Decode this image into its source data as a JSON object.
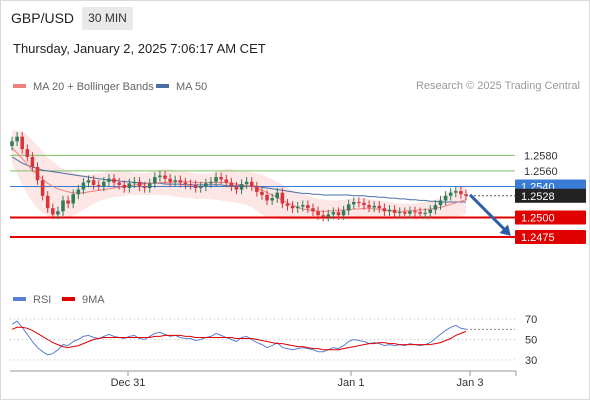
{
  "header": {
    "symbol": "GBP/USD",
    "timeframe": "30 MIN",
    "datetime": "Thursday, January 2, 2025 7:06:17 AM CET"
  },
  "attribution": "Research © 2025 Trading Central",
  "colors": {
    "up_candle": "#2e7d5b",
    "down_candle": "#d9343a",
    "ma20": "#f08080",
    "bollinger_fill": "#fde2e2",
    "ma50": "#4a6fa5",
    "resistance": "#7fc060",
    "pivot": "#3a7bd5",
    "support": "#e00000",
    "last_price_bg": "#222222",
    "forecast_arrow": "#2e5ea8",
    "rsi": "#5b7fd6",
    "rsi_ma": "#e00000"
  },
  "legend": [
    {
      "label": "MA 20 + Bollinger Bands",
      "color": "#f08080"
    },
    {
      "label": "MA 50",
      "color": "#4a6fa5"
    }
  ],
  "rsi_legend": [
    {
      "label": "RSI",
      "color": "#5b7fd6"
    },
    {
      "label": "9MA",
      "color": "#e00000"
    }
  ],
  "chart_data": [
    {
      "type": "candlestick",
      "title": "GBP/USD 30 MIN",
      "ylim": [
        1.2448,
        1.2628
      ],
      "x_ticks": [
        "Dec 31",
        "Jan 1",
        "Jan 3"
      ],
      "levels": [
        {
          "value": 1.258,
          "label": "1.2580",
          "kind": "resistance"
        },
        {
          "value": 1.256,
          "label": "1.2560",
          "kind": "resistance"
        },
        {
          "value": 1.254,
          "label": "1.2540",
          "kind": "pivot"
        },
        {
          "value": 1.25,
          "label": "1.2500",
          "kind": "support"
        },
        {
          "value": 1.2475,
          "label": "1.2475",
          "kind": "support"
        }
      ],
      "last_price": {
        "value": 1.2528,
        "label": "1.2528"
      },
      "close_series": [
        1.2598,
        1.2604,
        1.2588,
        1.2578,
        1.2565,
        1.2548,
        1.2528,
        1.2512,
        1.2504,
        1.2508,
        1.2522,
        1.2518,
        1.253,
        1.2536,
        1.2545,
        1.2548,
        1.2542,
        1.254,
        1.2546,
        1.255,
        1.2545,
        1.2542,
        1.2538,
        1.2544,
        1.2546,
        1.254,
        1.2538,
        1.2544,
        1.2552,
        1.2554,
        1.255,
        1.2546,
        1.2548,
        1.2545,
        1.2543,
        1.2542,
        1.2538,
        1.254,
        1.2544,
        1.2546,
        1.2552,
        1.2549,
        1.2545,
        1.254,
        1.2536,
        1.2543,
        1.2546,
        1.254,
        1.2533,
        1.2529,
        1.2522,
        1.2525,
        1.2532,
        1.2518,
        1.2515,
        1.2512,
        1.2514,
        1.2516,
        1.2512,
        1.2508,
        1.2503,
        1.2501,
        1.2504,
        1.2507,
        1.2503,
        1.2509,
        1.2517,
        1.252,
        1.2519,
        1.2516,
        1.2513,
        1.2515,
        1.2512,
        1.2508,
        1.251,
        1.2506,
        1.2507,
        1.2505,
        1.2508,
        1.2507,
        1.2505,
        1.2506,
        1.251,
        1.2516,
        1.2522,
        1.2528,
        1.2532,
        1.2534,
        1.253,
        1.2528
      ],
      "ma20_series": [
        1.259,
        1.2583,
        1.2576,
        1.2568,
        1.2561,
        1.2555,
        1.2549,
        1.2544,
        1.254,
        1.2537,
        1.2535,
        1.2533,
        1.2532,
        1.2531,
        1.2532,
        1.2533,
        1.2534,
        1.2535,
        1.2536,
        1.2537,
        1.2538,
        1.2539,
        1.254,
        1.2541,
        1.2542,
        1.2543,
        1.2543,
        1.2544,
        1.2544,
        1.2545,
        1.2545,
        1.2545,
        1.2546,
        1.2546,
        1.2546,
        1.2546,
        1.2545,
        1.2545,
        1.2545,
        1.2545,
        1.2545,
        1.2545,
        1.2545,
        1.2544,
        1.2543,
        1.2542,
        1.2541,
        1.254,
        1.2538,
        1.2535,
        1.2532,
        1.2529,
        1.2526,
        1.2522,
        1.2519,
        1.2516,
        1.2513,
        1.2511,
        1.251,
        1.2509,
        1.2508,
        1.2508,
        1.2508,
        1.2509,
        1.2509,
        1.251,
        1.251,
        1.2511,
        1.2511,
        1.2512,
        1.2512,
        1.2511,
        1.2511,
        1.251,
        1.2509,
        1.2508,
        1.2508,
        1.2508,
        1.2509,
        1.2509,
        1.251,
        1.251,
        1.2511,
        1.2512,
        1.2513,
        1.2515,
        1.2517,
        1.2519,
        1.2521,
        1.2523
      ],
      "bb_upper": [
        1.2612,
        1.2612,
        1.261,
        1.2606,
        1.26,
        1.2592,
        1.2585,
        1.2577,
        1.2572,
        1.2567,
        1.2562,
        1.256,
        1.2558,
        1.2556,
        1.2555,
        1.2555,
        1.2556,
        1.2557,
        1.2558,
        1.256,
        1.2561,
        1.2561,
        1.256,
        1.2559,
        1.2558,
        1.2557,
        1.2557,
        1.2558,
        1.256,
        1.2562,
        1.2562,
        1.2562,
        1.2561,
        1.256,
        1.2559,
        1.2558,
        1.2557,
        1.2556,
        1.2556,
        1.2557,
        1.2559,
        1.2561,
        1.2562,
        1.2562,
        1.2561,
        1.256,
        1.2559,
        1.2558,
        1.2557,
        1.2555,
        1.2552,
        1.2549,
        1.2546,
        1.2542,
        1.2538,
        1.2535,
        1.2532,
        1.253,
        1.2528,
        1.2526,
        1.2524,
        1.2523,
        1.2522,
        1.2522,
        1.2522,
        1.2523,
        1.2524,
        1.2525,
        1.2525,
        1.2525,
        1.2524,
        1.2523,
        1.2522,
        1.2521,
        1.252,
        1.2519,
        1.2518,
        1.2518,
        1.2518,
        1.2518,
        1.2519,
        1.252,
        1.2521,
        1.2523,
        1.2526,
        1.253,
        1.2534,
        1.2538,
        1.254,
        1.2541
      ],
      "bb_lower": [
        1.257,
        1.2556,
        1.2542,
        1.253,
        1.252,
        1.2512,
        1.2506,
        1.2502,
        1.2499,
        1.2498,
        1.2498,
        1.25,
        1.2503,
        1.2506,
        1.251,
        1.2514,
        1.2518,
        1.2521,
        1.2523,
        1.2525,
        1.2526,
        1.2527,
        1.2528,
        1.2529,
        1.2529,
        1.2529,
        1.2529,
        1.2529,
        1.2529,
        1.2529,
        1.2529,
        1.2528,
        1.2527,
        1.2526,
        1.2525,
        1.2525,
        1.2524,
        1.2524,
        1.2524,
        1.2524,
        1.2523,
        1.2522,
        1.2521,
        1.252,
        1.2519,
        1.2518,
        1.2516,
        1.2513,
        1.2509,
        1.2504,
        1.2501,
        1.2499,
        1.2498,
        1.2497,
        1.2497,
        1.2497,
        1.2497,
        1.2497,
        1.2497,
        1.2497,
        1.2497,
        1.2497,
        1.2497,
        1.2497,
        1.2497,
        1.2497,
        1.2497,
        1.2497,
        1.2497,
        1.2497,
        1.2497,
        1.2497,
        1.2497,
        1.2497,
        1.2497,
        1.2497,
        1.2497,
        1.2497,
        1.2497,
        1.2497,
        1.2497,
        1.2497,
        1.2497,
        1.2497,
        1.2497,
        1.2497,
        1.2499,
        1.2501,
        1.2502,
        1.2505
      ],
      "ma50_series": [
        1.2578,
        1.2574,
        1.257,
        1.2567,
        1.2565,
        1.2563,
        1.2561,
        1.256,
        1.2559,
        1.2558,
        1.2557,
        1.2556,
        1.2555,
        1.2554,
        1.2553,
        1.2552,
        1.2551,
        1.255,
        1.2549,
        1.2548,
        1.2548,
        1.2547,
        1.2546,
        1.2546,
        1.2545,
        1.2545,
        1.2544,
        1.2544,
        1.2544,
        1.2544,
        1.2543,
        1.2543,
        1.2543,
        1.2543,
        1.2542,
        1.2542,
        1.2542,
        1.2542,
        1.2542,
        1.2542,
        1.2542,
        1.2542,
        1.2541,
        1.2541,
        1.2541,
        1.2541,
        1.2541,
        1.2541,
        1.254,
        1.2539,
        1.2538,
        1.2537,
        1.2536,
        1.2535,
        1.2534,
        1.2533,
        1.2532,
        1.2531,
        1.2531,
        1.253,
        1.253,
        1.2529,
        1.2529,
        1.2529,
        1.2529,
        1.2529,
        1.2529,
        1.2528,
        1.2528,
        1.2528,
        1.2527,
        1.2527,
        1.2526,
        1.2526,
        1.2525,
        1.2525,
        1.2524,
        1.2524,
        1.2523,
        1.2523,
        1.2522,
        1.2522,
        1.2521,
        1.2521,
        1.252,
        1.252,
        1.252,
        1.252,
        1.252,
        1.252
      ],
      "forecast": {
        "from": 1.2528,
        "to": 1.2475
      }
    },
    {
      "type": "line",
      "title": "RSI",
      "ylim": [
        20,
        80
      ],
      "y_ticks": [
        70,
        50,
        30
      ],
      "series": [
        {
          "name": "RSI",
          "values": [
            65,
            68,
            62,
            55,
            48,
            42,
            38,
            35,
            36,
            40,
            45,
            44,
            48,
            50,
            53,
            54,
            52,
            51,
            53,
            55,
            53,
            52,
            51,
            53,
            54,
            51,
            50,
            53,
            56,
            57,
            55,
            53,
            54,
            52,
            51,
            51,
            49,
            50,
            52,
            53,
            56,
            54,
            52,
            50,
            48,
            52,
            53,
            50,
            47,
            45,
            42,
            44,
            47,
            42,
            41,
            40,
            41,
            42,
            41,
            40,
            38,
            38,
            40,
            42,
            41,
            44,
            48,
            50,
            49,
            48,
            46,
            47,
            46,
            44,
            45,
            44,
            45,
            44,
            46,
            45,
            44,
            45,
            47,
            51,
            55,
            59,
            62,
            64,
            61,
            60
          ]
        },
        {
          "name": "9MA",
          "values": [
            60,
            62,
            62,
            61,
            59,
            56,
            53,
            50,
            47,
            45,
            43,
            42,
            43,
            44,
            46,
            48,
            50,
            51,
            52,
            52,
            52,
            52,
            52,
            52,
            52,
            52,
            52,
            52,
            53,
            53,
            54,
            54,
            54,
            54,
            53,
            53,
            52,
            52,
            52,
            52,
            52,
            52,
            52,
            52,
            51,
            51,
            51,
            51,
            50,
            49,
            48,
            47,
            46,
            46,
            45,
            44,
            43,
            43,
            42,
            41,
            41,
            40,
            40,
            40,
            40,
            41,
            42,
            43,
            44,
            45,
            46,
            46,
            47,
            47,
            46,
            46,
            45,
            45,
            45,
            45,
            45,
            45,
            45,
            46,
            47,
            49,
            51,
            54,
            56,
            58
          ]
        }
      ]
    }
  ]
}
